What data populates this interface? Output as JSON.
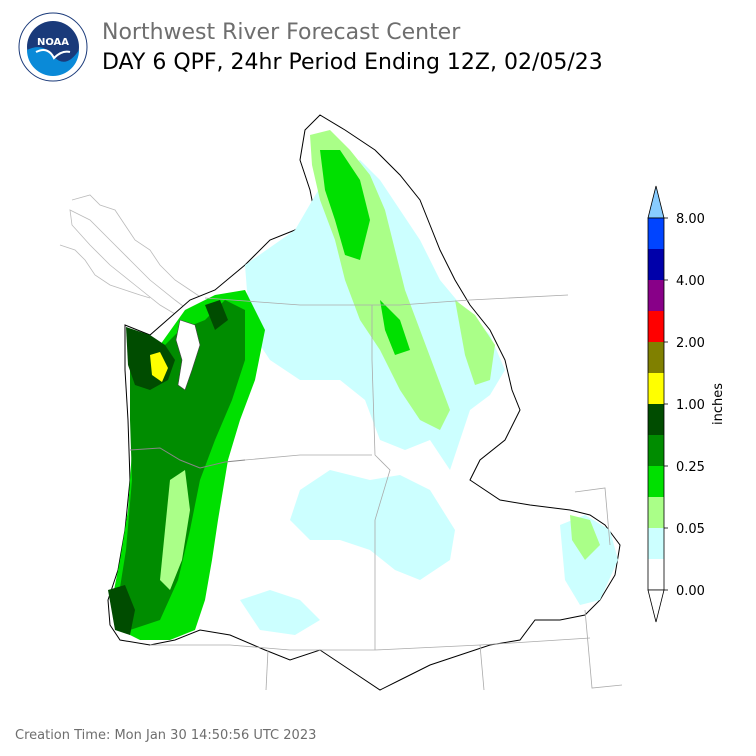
{
  "header": {
    "title_line1": "Northwest River Forecast Center",
    "title_line2": "DAY 6 QPF, 24hr Period Ending 12Z, 02/05/23"
  },
  "logo": {
    "text": "NOAA",
    "icon": "noaa-logo-icon"
  },
  "colorbar": {
    "unit_label": "inches",
    "tick_labels": [
      "8.00",
      "4.00",
      "2.00",
      "1.00",
      "0.25",
      "0.05",
      "0.00"
    ],
    "colors_bottom_to_top": [
      "#ffffff",
      "#ccffff",
      "#aaff88",
      "#00e000",
      "#008c00",
      "#004c00",
      "#ffff00",
      "#808000",
      "#ff0000",
      "#880088",
      "#0000aa",
      "#0044ff",
      "#88ccff"
    ]
  },
  "footer": {
    "creation_time": "Creation Time: Mon Jan 30 14:50:56 UTC 2023"
  }
}
